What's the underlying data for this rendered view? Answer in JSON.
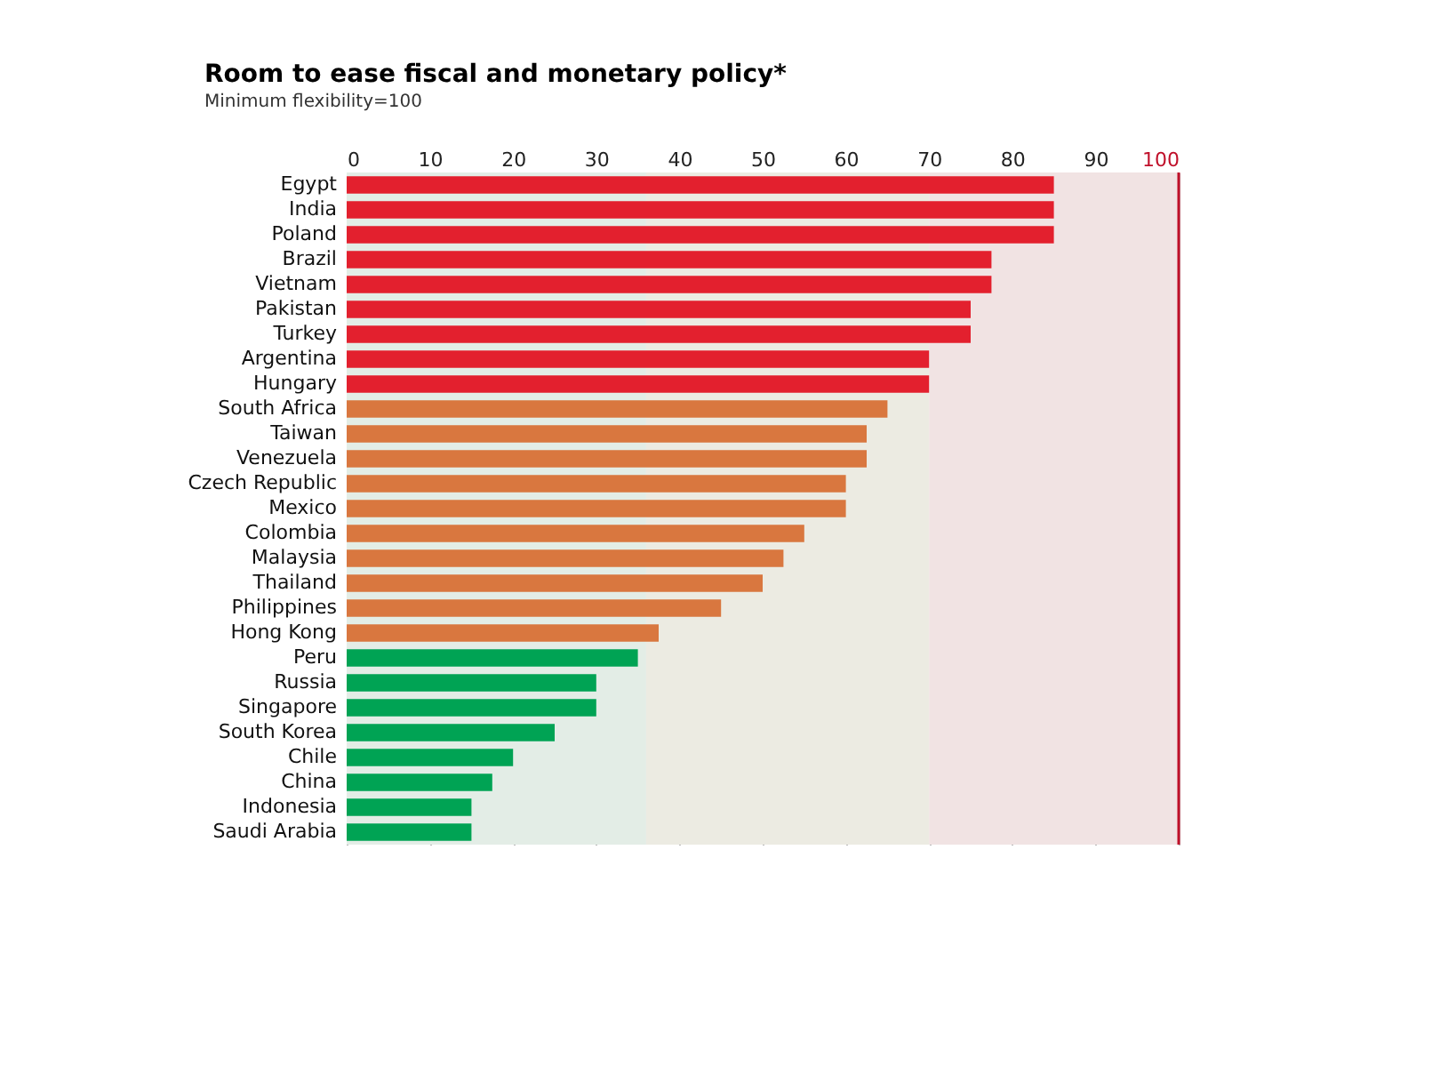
{
  "chart_data": {
    "type": "bar",
    "orientation": "horizontal",
    "title": "Room to ease fiscal and monetary policy*",
    "subtitle": "Minimum flexibility=100",
    "categories": [
      "Egypt",
      "India",
      "Poland",
      "Brazil",
      "Vietnam",
      "Pakistan",
      "Turkey",
      "Argentina",
      "Hungary",
      "South Africa",
      "Taiwan",
      "Venezuela",
      "Czech Republic",
      "Mexico",
      "Colombia",
      "Malaysia",
      "Thailand",
      "Philippines",
      "Hong Kong",
      "Peru",
      "Russia",
      "Singapore",
      "South Korea",
      "Chile",
      "China",
      "Indonesia",
      "Saudi Arabia"
    ],
    "values": [
      85,
      85,
      85,
      77.5,
      77.5,
      75,
      75,
      70,
      70,
      65,
      62.5,
      62.5,
      60,
      60,
      55,
      52.5,
      50,
      45,
      37.5,
      35,
      30,
      30,
      25,
      20,
      17.5,
      15,
      15
    ],
    "colors": [
      "#e3202e",
      "#e3202e",
      "#e3202e",
      "#e3202e",
      "#e3202e",
      "#e3202e",
      "#e3202e",
      "#e3202e",
      "#e3202e",
      "#d9773f",
      "#d9773f",
      "#d9773f",
      "#d9773f",
      "#d9773f",
      "#d9773f",
      "#d9773f",
      "#d9773f",
      "#d9773f",
      "#d9773f",
      "#00a354",
      "#00a354",
      "#00a354",
      "#00a354",
      "#00a354",
      "#00a354",
      "#00a354",
      "#00a354"
    ],
    "xlim": [
      0,
      100
    ],
    "xticks": [
      0,
      10,
      20,
      30,
      40,
      50,
      60,
      70,
      80,
      90,
      100
    ],
    "grid": "x",
    "bands": [
      {
        "axis": "x",
        "from": 0,
        "to": 36,
        "color": "#e3ede6"
      },
      {
        "axis": "x",
        "from": 36,
        "to": 70,
        "color": "#ecebe2"
      },
      {
        "axis": "x",
        "from": 70,
        "to": 100,
        "color": "#f1e3e3"
      }
    ],
    "ref_lines": [
      {
        "axis": "x",
        "value": 100,
        "color": "#c0102a"
      }
    ]
  }
}
